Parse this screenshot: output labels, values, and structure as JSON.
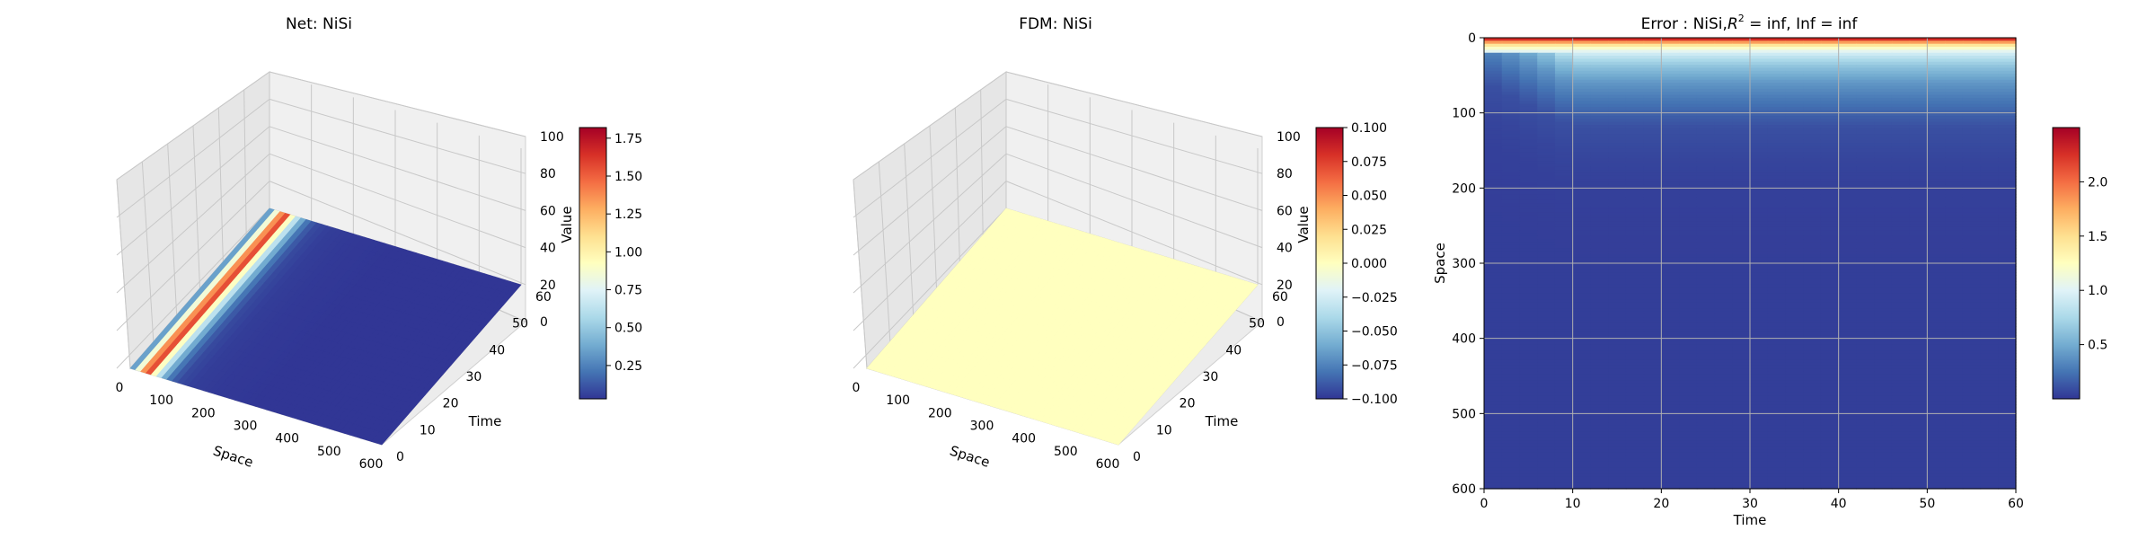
{
  "chart_data": [
    {
      "type": "surface3d",
      "title": "Net: NiSi",
      "xlabel": "Space",
      "ylabel": "Time",
      "zlabel": "Value",
      "xlim": [
        0,
        600
      ],
      "ylim": [
        0,
        60
      ],
      "zlim": [
        0,
        100
      ],
      "xticks": [
        0,
        100,
        200,
        300,
        400,
        500,
        600
      ],
      "yticks": [
        0,
        10,
        20,
        30,
        40,
        50,
        60
      ],
      "zticks": [
        0,
        20,
        40,
        60,
        80,
        100
      ],
      "colormap": "RdYlBu_r",
      "colorbar": {
        "min": 0.03,
        "max": 1.82,
        "ticks": [
          "0.25",
          "0.50",
          "0.75",
          "1.00",
          "1.25",
          "1.50",
          "1.75"
        ],
        "values": [
          0.25,
          0.5,
          0.75,
          1.0,
          1.25,
          1.5,
          1.75
        ]
      },
      "surface_profile": {
        "space": [
          0,
          10,
          20,
          30,
          40,
          50,
          60,
          70,
          80,
          90,
          100,
          120,
          150,
          200,
          300,
          400,
          500,
          600
        ],
        "value": [
          0.1,
          0.5,
          0.9,
          1.3,
          1.82,
          1.1,
          0.8,
          0.6,
          0.4,
          0.25,
          0.15,
          0.08,
          0.05,
          0.04,
          0.03,
          0.03,
          0.03,
          0.03
        ]
      }
    },
    {
      "type": "surface3d",
      "title": "FDM: NiSi",
      "xlabel": "Space",
      "ylabel": "Time",
      "zlabel": "Value",
      "xlim": [
        0,
        600
      ],
      "ylim": [
        0,
        60
      ],
      "zlim": [
        0,
        100
      ],
      "xticks": [
        0,
        100,
        200,
        300,
        400,
        500,
        600
      ],
      "yticks": [
        0,
        10,
        20,
        30,
        40,
        50,
        60
      ],
      "zticks": [
        0,
        20,
        40,
        60,
        80,
        100
      ],
      "colormap": "RdYlBu_r",
      "colorbar": {
        "min": -0.1,
        "max": 0.1,
        "ticks": [
          "−0.100",
          "−0.075",
          "−0.050",
          "−0.025",
          "0.000",
          "0.025",
          "0.050",
          "0.075",
          "0.100"
        ],
        "values": [
          -0.1,
          -0.075,
          -0.05,
          -0.025,
          0.0,
          0.025,
          0.05,
          0.075,
          0.1
        ]
      },
      "surface_value": 0.0
    },
    {
      "type": "heatmap",
      "title_prefix": "Error : NiSi,",
      "title_r": "R",
      "title_sup": "2",
      "title_suffix": " = inf, Inf = inf",
      "xlabel": "Time",
      "ylabel": "Space",
      "xlim": [
        0,
        60
      ],
      "ylim": [
        600,
        0
      ],
      "xticks": [
        0,
        10,
        20,
        30,
        40,
        50,
        60
      ],
      "yticks": [
        0,
        100,
        200,
        300,
        400,
        500,
        600
      ],
      "grid": true,
      "colormap": "RdYlBu_r",
      "colorbar": {
        "min": 0.0,
        "max": 2.5,
        "ticks": [
          "0.5",
          "1.0",
          "1.5",
          "2.0"
        ],
        "values": [
          0.5,
          1.0,
          1.5,
          2.0
        ]
      },
      "error_profile": {
        "space": [
          0,
          5,
          10,
          15,
          20,
          30,
          40,
          60,
          80,
          100,
          120,
          160,
          200,
          300,
          600
        ],
        "error": [
          2.5,
          1.9,
          1.45,
          1.15,
          0.95,
          0.75,
          0.6,
          0.4,
          0.28,
          0.18,
          0.1,
          0.06,
          0.04,
          0.03,
          0.03
        ]
      }
    }
  ]
}
